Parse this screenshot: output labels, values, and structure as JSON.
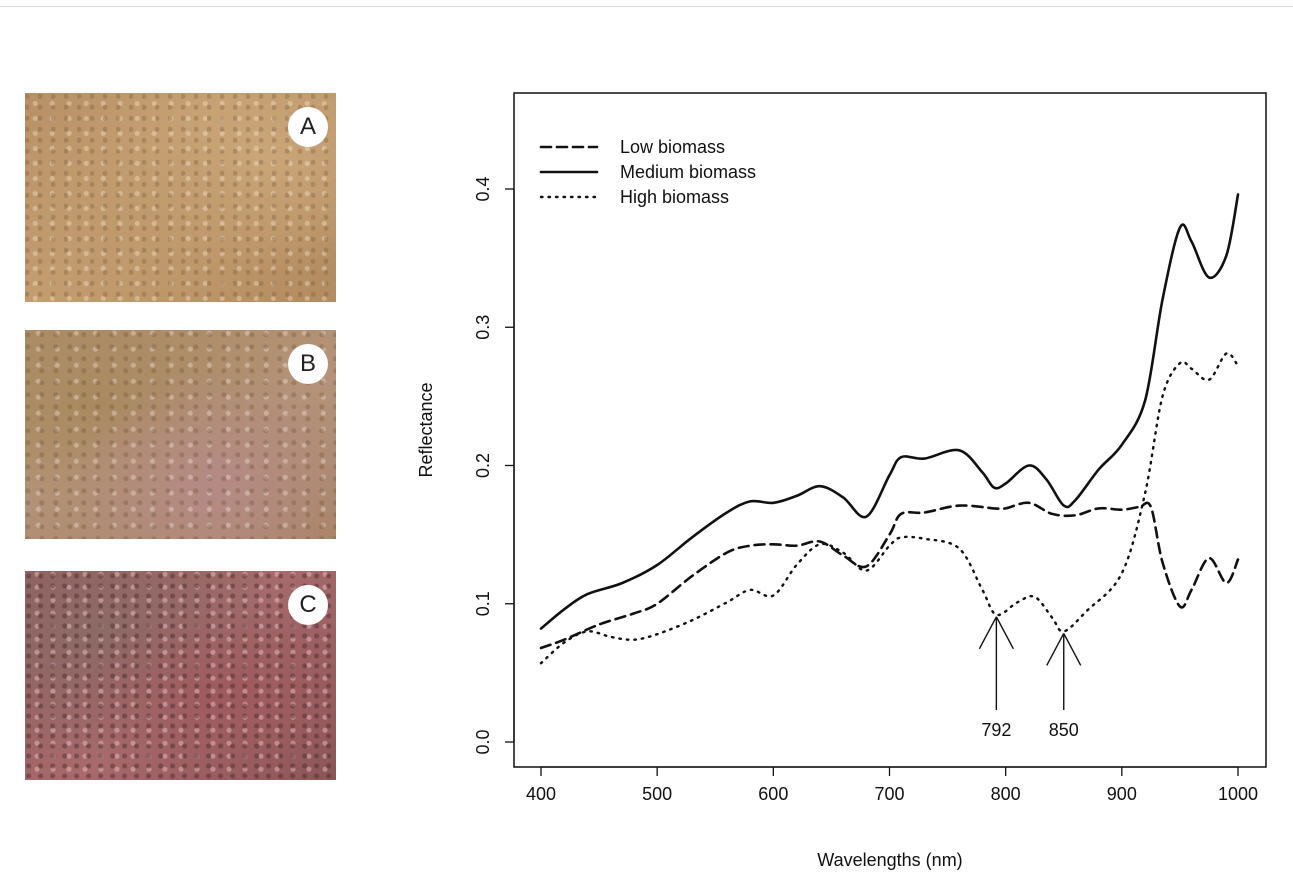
{
  "panels": [
    {
      "label": "A"
    },
    {
      "label": "B"
    },
    {
      "label": "C"
    }
  ],
  "chart_data": {
    "type": "line",
    "title": "",
    "xlabel": "Wavelengths (nm)",
    "ylabel": "Reflectance",
    "xlim": [
      400,
      1000
    ],
    "ylim": [
      0.0,
      0.4
    ],
    "x_ticks": [
      400,
      500,
      600,
      700,
      800,
      900,
      1000
    ],
    "y_ticks": [
      0.0,
      0.1,
      0.2,
      0.3,
      0.4
    ],
    "y_tick_labels": [
      "0.0",
      "0.1",
      "0.2",
      "0.3",
      "0.4"
    ],
    "grid": false,
    "legend_position": "top-left",
    "series": [
      {
        "name": "Low biomass",
        "style": "dashed",
        "x": [
          400,
          420,
          450,
          480,
          500,
          530,
          560,
          580,
          600,
          620,
          640,
          660,
          680,
          700,
          710,
          730,
          760,
          790,
          800,
          820,
          840,
          860,
          880,
          900,
          915,
          925,
          935,
          950,
          960,
          975,
          990,
          1000
        ],
        "y": [
          0.068,
          0.074,
          0.085,
          0.093,
          0.1,
          0.12,
          0.137,
          0.142,
          0.143,
          0.142,
          0.145,
          0.135,
          0.127,
          0.15,
          0.165,
          0.166,
          0.171,
          0.169,
          0.169,
          0.173,
          0.165,
          0.164,
          0.169,
          0.168,
          0.17,
          0.17,
          0.13,
          0.098,
          0.11,
          0.133,
          0.115,
          0.132
        ]
      },
      {
        "name": "Medium biomass",
        "style": "solid",
        "x": [
          400,
          420,
          440,
          470,
          500,
          530,
          560,
          580,
          600,
          620,
          640,
          660,
          680,
          700,
          710,
          730,
          760,
          780,
          790,
          800,
          820,
          835,
          850,
          860,
          880,
          900,
          920,
          935,
          950,
          960,
          975,
          990,
          1000
        ],
        "y": [
          0.082,
          0.096,
          0.107,
          0.115,
          0.128,
          0.148,
          0.166,
          0.174,
          0.173,
          0.178,
          0.185,
          0.177,
          0.163,
          0.193,
          0.206,
          0.205,
          0.211,
          0.195,
          0.184,
          0.187,
          0.2,
          0.19,
          0.171,
          0.175,
          0.197,
          0.215,
          0.247,
          0.32,
          0.372,
          0.362,
          0.336,
          0.352,
          0.396
        ]
      },
      {
        "name": "High biomass",
        "style": "dotted",
        "x": [
          400,
          420,
          440,
          460,
          480,
          500,
          530,
          560,
          580,
          600,
          620,
          640,
          660,
          680,
          700,
          710,
          730,
          760,
          780,
          792,
          810,
          825,
          840,
          850,
          870,
          900,
          920,
          935,
          950,
          960,
          975,
          990,
          1000
        ],
        "y": [
          0.057,
          0.072,
          0.08,
          0.076,
          0.074,
          0.078,
          0.088,
          0.101,
          0.11,
          0.106,
          0.128,
          0.143,
          0.137,
          0.124,
          0.142,
          0.148,
          0.147,
          0.14,
          0.11,
          0.092,
          0.101,
          0.105,
          0.09,
          0.08,
          0.095,
          0.122,
          0.18,
          0.25,
          0.274,
          0.27,
          0.262,
          0.281,
          0.272
        ]
      }
    ],
    "annotations": [
      {
        "text": "792",
        "x": 792,
        "y": 0.092
      },
      {
        "text": "850",
        "x": 850,
        "y": 0.08
      }
    ]
  }
}
